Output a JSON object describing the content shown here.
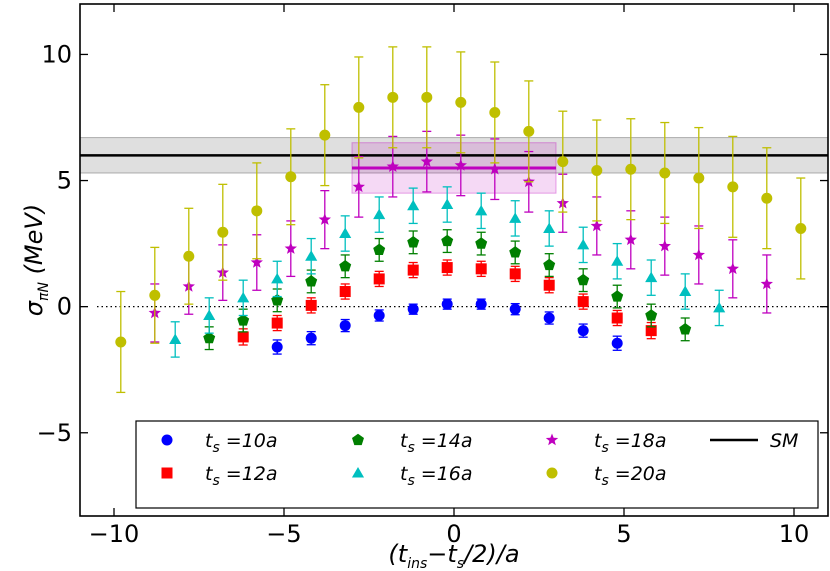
{
  "chart_data": {
    "type": "scatter",
    "title": "",
    "xlabel": "(t_ins−t_s/2)/a",
    "ylabel": "σ_πN (MeV)",
    "xlim": [
      -11,
      11
    ],
    "ylim": [
      -8.3,
      12
    ],
    "x_ticks": [
      -10,
      -5,
      0,
      5,
      10
    ],
    "x_tick_labels": [
      "−10",
      "−5",
      "0",
      "5",
      "10"
    ],
    "y_ticks": [
      -5,
      0,
      5,
      10
    ],
    "y_tick_labels": [
      "−5",
      "0",
      "5",
      "10"
    ],
    "zero_line": 0,
    "sm_band": {
      "label": "SM",
      "value": 6.0,
      "low": 5.3,
      "high": 6.7,
      "x_range": [
        -11,
        11
      ]
    },
    "fit_band": {
      "value": 5.5,
      "low": 4.5,
      "high": 6.5,
      "x_range": [
        -3,
        3
      ],
      "color": "#bf00bf"
    },
    "legend_location": "lower center",
    "series": [
      {
        "name": "t_s =10a",
        "label_main": "t",
        "label_sub": "s",
        "label_rest": " =10a",
        "marker": "circle",
        "color": "#0000ff",
        "errcolor": "#0000ff",
        "x": [
          -5.2,
          -4.2,
          -3.2,
          -2.2,
          -1.2,
          -0.2,
          0.8,
          1.8,
          2.8,
          3.8,
          4.8
        ],
        "y": [
          -1.6,
          -1.25,
          -0.75,
          -0.35,
          -0.1,
          0.1,
          0.1,
          -0.1,
          -0.45,
          -0.95,
          -1.45
        ],
        "err": [
          0.28,
          0.26,
          0.24,
          0.22,
          0.2,
          0.2,
          0.2,
          0.22,
          0.24,
          0.26,
          0.28
        ]
      },
      {
        "name": "t_s =12a",
        "label_main": "t",
        "label_sub": "s",
        "label_rest": " =12a",
        "marker": "square",
        "color": "#ff0000",
        "errcolor": "#ff0000",
        "x": [
          -6.2,
          -5.2,
          -4.2,
          -3.2,
          -2.2,
          -1.2,
          -0.2,
          0.8,
          1.8,
          2.8,
          3.8,
          4.8,
          5.8
        ],
        "y": [
          -1.2,
          -0.65,
          0.05,
          0.6,
          1.1,
          1.45,
          1.55,
          1.5,
          1.3,
          0.85,
          0.2,
          -0.45,
          -0.95
        ],
        "err": [
          0.32,
          0.3,
          0.3,
          0.3,
          0.3,
          0.3,
          0.3,
          0.3,
          0.3,
          0.3,
          0.3,
          0.3,
          0.32
        ]
      },
      {
        "name": "t_s =14a",
        "label_main": "t",
        "label_sub": "s",
        "label_rest": " =14a",
        "marker": "pentagon",
        "color": "#007f00",
        "errcolor": "#007f00",
        "x": [
          -7.2,
          -6.2,
          -5.2,
          -4.2,
          -3.2,
          -2.2,
          -1.2,
          -0.2,
          0.8,
          1.8,
          2.8,
          3.8,
          4.8,
          5.8,
          6.8
        ],
        "y": [
          -1.25,
          -0.55,
          0.25,
          1.0,
          1.6,
          2.25,
          2.55,
          2.6,
          2.5,
          2.15,
          1.65,
          1.05,
          0.4,
          -0.35,
          -0.9
        ],
        "err": [
          0.45,
          0.45,
          0.45,
          0.45,
          0.45,
          0.45,
          0.45,
          0.45,
          0.45,
          0.45,
          0.45,
          0.45,
          0.45,
          0.45,
          0.45
        ]
      },
      {
        "name": "t_s =16a",
        "label_main": "t",
        "label_sub": "s",
        "label_rest": " =16a",
        "marker": "triangle",
        "color": "#00bfbf",
        "errcolor": "#00bfbf",
        "x": [
          -8.2,
          -7.2,
          -6.2,
          -5.2,
          -4.2,
          -3.2,
          -2.2,
          -1.2,
          -0.2,
          0.8,
          1.8,
          2.8,
          3.8,
          4.8,
          5.8,
          6.8,
          7.8
        ],
        "y": [
          -1.3,
          -0.35,
          0.35,
          1.1,
          2.0,
          2.9,
          3.65,
          4.0,
          4.05,
          3.8,
          3.5,
          3.1,
          2.45,
          1.8,
          1.15,
          0.6,
          -0.05
        ],
        "err": [
          0.7,
          0.7,
          0.7,
          0.7,
          0.7,
          0.7,
          0.7,
          0.7,
          0.7,
          0.7,
          0.7,
          0.7,
          0.7,
          0.7,
          0.7,
          0.7,
          0.7
        ]
      },
      {
        "name": "t_s =18a",
        "label_main": "t",
        "label_sub": "s",
        "label_rest": " =18a",
        "marker": "star",
        "color": "#bf00bf",
        "errcolor": "#bf00bf",
        "x": [
          -8.8,
          -7.8,
          -6.8,
          -5.8,
          -4.8,
          -3.8,
          -2.8,
          -1.8,
          -0.8,
          0.2,
          1.2,
          2.2,
          3.2,
          4.2,
          5.2,
          6.2,
          7.2,
          8.2,
          9.2
        ],
        "y": [
          -0.25,
          0.8,
          1.35,
          1.75,
          2.3,
          3.45,
          4.75,
          5.55,
          5.75,
          5.6,
          5.45,
          4.95,
          4.1,
          3.2,
          2.65,
          2.4,
          2.05,
          1.5,
          0.9
        ],
        "err": [
          1.15,
          1.1,
          1.1,
          1.1,
          1.1,
          1.15,
          1.2,
          1.2,
          1.2,
          1.2,
          1.2,
          1.2,
          1.15,
          1.15,
          1.15,
          1.15,
          1.15,
          1.15,
          1.15
        ]
      },
      {
        "name": "t_s =20a",
        "label_main": "t",
        "label_sub": "s",
        "label_rest": " =20a",
        "marker": "circle",
        "color": "#bfbf00",
        "errcolor": "#bfbf00",
        "x": [
          -9.8,
          -8.8,
          -7.8,
          -6.8,
          -5.8,
          -4.8,
          -3.8,
          -2.8,
          -1.8,
          -0.8,
          0.2,
          1.2,
          2.2,
          3.2,
          4.2,
          5.2,
          6.2,
          7.2,
          8.2,
          9.2,
          10.2
        ],
        "y": [
          -1.4,
          0.45,
          2.0,
          2.95,
          3.8,
          5.15,
          6.8,
          7.9,
          8.3,
          8.3,
          8.1,
          7.7,
          6.95,
          5.75,
          5.4,
          5.45,
          5.3,
          5.1,
          4.75,
          4.3,
          3.1
        ],
        "err": [
          2.0,
          1.9,
          1.9,
          1.9,
          1.9,
          1.9,
          2.0,
          2.0,
          2.0,
          2.0,
          2.0,
          2.0,
          2.0,
          2.0,
          2.0,
          2.0,
          2.0,
          2.0,
          2.0,
          2.0,
          2.0
        ]
      }
    ]
  },
  "legend": {
    "sm_label": "SM"
  }
}
